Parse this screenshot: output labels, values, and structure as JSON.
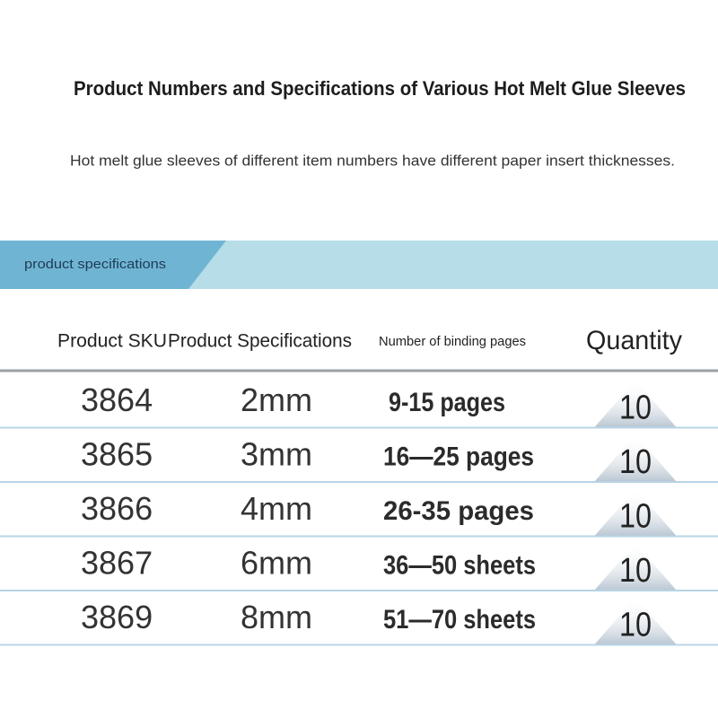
{
  "header": {
    "title": "Product Numbers and Specifications of Various Hot Melt Glue Sleeves",
    "subtitle": "Hot melt glue sleeves of different item numbers have different paper insert thicknesses."
  },
  "banner": {
    "label": "product specifications"
  },
  "table": {
    "columns": [
      "Product SKU",
      "Product Specifications",
      "Number of binding pages",
      "Quantity"
    ],
    "rows": [
      [
        "3864",
        "2mm",
        "9-15 pages",
        "10"
      ],
      [
        "3865",
        "3mm",
        "16—25 pages",
        "10"
      ],
      [
        "3866",
        "4mm",
        "26-35 pages",
        "10"
      ],
      [
        "3867",
        "6mm",
        "36—50 sheets",
        "10"
      ],
      [
        "3869",
        "8mm",
        "51—70 sheets",
        "10"
      ]
    ]
  }
}
